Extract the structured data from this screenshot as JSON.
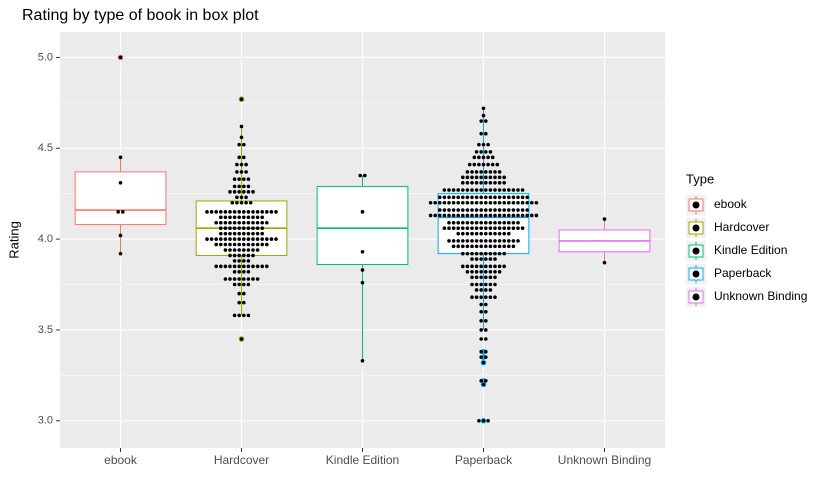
{
  "chart_data": {
    "type": "box",
    "title": "Rating by type of book in box plot",
    "y_label": "Rating",
    "legend_title": "Type",
    "legend_position": "right",
    "grid": true,
    "categories": [
      "ebook",
      "Hardcover",
      "Kindle Edition",
      "Paperback",
      "Unknown Binding"
    ],
    "ylim": [
      2.85,
      5.14
    ],
    "yticks": [
      {
        "value": 3,
        "label": "3.0"
      },
      3.5,
      {
        "value": 4,
        "label": "4.0"
      },
      4.5,
      {
        "value": 5,
        "label": "5.0"
      }
    ],
    "series": [
      {
        "name": "ebook",
        "color": "#F8766D",
        "min": 3.92,
        "q1": 4.08,
        "median": 4.16,
        "q3": 4.37,
        "max": 4.45,
        "outliers": [
          5.0
        ],
        "dots": [
          {
            "y": 5.0,
            "n": 1
          },
          {
            "y": 4.45,
            "n": 1
          },
          {
            "y": 4.31,
            "n": 1
          },
          {
            "y": 4.15,
            "n": 2
          },
          {
            "y": 4.02,
            "n": 1
          },
          {
            "y": 3.92,
            "n": 1
          }
        ]
      },
      {
        "name": "Hardcover",
        "color": "#A3A500",
        "min": 3.58,
        "q1": 3.91,
        "median": 4.06,
        "q3": 4.21,
        "max": 4.62,
        "outliers": [
          4.77,
          3.45
        ],
        "dots": [
          {
            "y": 4.77,
            "n": 1
          },
          {
            "y": 4.62,
            "n": 1
          },
          {
            "y": 4.56,
            "n": 1
          },
          {
            "y": 4.52,
            "n": 2
          },
          {
            "y": 4.45,
            "n": 2
          },
          {
            "y": 4.41,
            "n": 3
          },
          {
            "y": 4.37,
            "n": 3
          },
          {
            "y": 4.33,
            "n": 4
          },
          {
            "y": 4.29,
            "n": 4
          },
          {
            "y": 4.26,
            "n": 6
          },
          {
            "y": 4.23,
            "n": 3
          },
          {
            "y": 4.2,
            "n": 5
          },
          {
            "y": 4.15,
            "n": 16
          },
          {
            "y": 4.12,
            "n": 10
          },
          {
            "y": 4.09,
            "n": 12
          },
          {
            "y": 4.06,
            "n": 10
          },
          {
            "y": 4.03,
            "n": 10
          },
          {
            "y": 4.0,
            "n": 16
          },
          {
            "y": 3.97,
            "n": 12
          },
          {
            "y": 3.94,
            "n": 8
          },
          {
            "y": 3.91,
            "n": 6
          },
          {
            "y": 3.88,
            "n": 4
          },
          {
            "y": 3.85,
            "n": 12
          },
          {
            "y": 3.82,
            "n": 4
          },
          {
            "y": 3.78,
            "n": 8
          },
          {
            "y": 3.75,
            "n": 4
          },
          {
            "y": 3.7,
            "n": 2
          },
          {
            "y": 3.65,
            "n": 2
          },
          {
            "y": 3.58,
            "n": 4
          },
          {
            "y": 3.45,
            "n": 1
          }
        ]
      },
      {
        "name": "Kindle Edition",
        "color": "#00BF7D",
        "min": 3.33,
        "q1": 3.86,
        "median": 4.06,
        "q3": 4.29,
        "max": 4.35,
        "outliers": [],
        "dots": [
          {
            "y": 4.35,
            "n": 2
          },
          {
            "y": 4.15,
            "n": 1
          },
          {
            "y": 3.93,
            "n": 1
          },
          {
            "y": 3.83,
            "n": 1
          },
          {
            "y": 3.76,
            "n": 1
          },
          {
            "y": 3.33,
            "n": 1
          }
        ]
      },
      {
        "name": "Paperback",
        "color": "#00B0F6",
        "min": 3.5,
        "q1": 3.92,
        "median": 4.12,
        "q3": 4.25,
        "max": 4.72,
        "outliers": [
          3.38,
          3.35,
          3.32,
          3.22,
          3.2,
          3.0
        ],
        "dots": [
          {
            "y": 4.72,
            "n": 1
          },
          {
            "y": 4.68,
            "n": 1
          },
          {
            "y": 4.65,
            "n": 2
          },
          {
            "y": 4.58,
            "n": 2
          },
          {
            "y": 4.52,
            "n": 3
          },
          {
            "y": 4.48,
            "n": 4
          },
          {
            "y": 4.45,
            "n": 5
          },
          {
            "y": 4.41,
            "n": 7
          },
          {
            "y": 4.37,
            "n": 8
          },
          {
            "y": 4.34,
            "n": 10
          },
          {
            "y": 4.31,
            "n": 10
          },
          {
            "y": 4.27,
            "n": 18
          },
          {
            "y": 4.23,
            "n": 20
          },
          {
            "y": 4.2,
            "n": 24
          },
          {
            "y": 4.16,
            "n": 20
          },
          {
            "y": 4.13,
            "n": 24
          },
          {
            "y": 4.09,
            "n": 16
          },
          {
            "y": 4.06,
            "n": 18
          },
          {
            "y": 4.03,
            "n": 12
          },
          {
            "y": 3.99,
            "n": 16
          },
          {
            "y": 3.96,
            "n": 14
          },
          {
            "y": 3.92,
            "n": 10
          },
          {
            "y": 3.89,
            "n": 6
          },
          {
            "y": 3.85,
            "n": 10
          },
          {
            "y": 3.82,
            "n": 8
          },
          {
            "y": 3.79,
            "n": 6
          },
          {
            "y": 3.75,
            "n": 6
          },
          {
            "y": 3.72,
            "n": 4
          },
          {
            "y": 3.68,
            "n": 6
          },
          {
            "y": 3.64,
            "n": 2
          },
          {
            "y": 3.6,
            "n": 2
          },
          {
            "y": 3.55,
            "n": 2
          },
          {
            "y": 3.5,
            "n": 2
          },
          {
            "y": 3.45,
            "n": 2
          },
          {
            "y": 3.38,
            "n": 2
          },
          {
            "y": 3.35,
            "n": 2
          },
          {
            "y": 3.32,
            "n": 1
          },
          {
            "y": 3.22,
            "n": 2
          },
          {
            "y": 3.2,
            "n": 1
          },
          {
            "y": 3.0,
            "n": 3
          }
        ]
      },
      {
        "name": "Unknown Binding",
        "color": "#E76BF3",
        "min": 3.87,
        "q1": 3.93,
        "median": 3.99,
        "q3": 4.05,
        "max": 4.11,
        "outliers": [],
        "dots": [
          {
            "y": 4.11,
            "n": 1
          },
          {
            "y": 3.87,
            "n": 1
          }
        ]
      }
    ]
  }
}
